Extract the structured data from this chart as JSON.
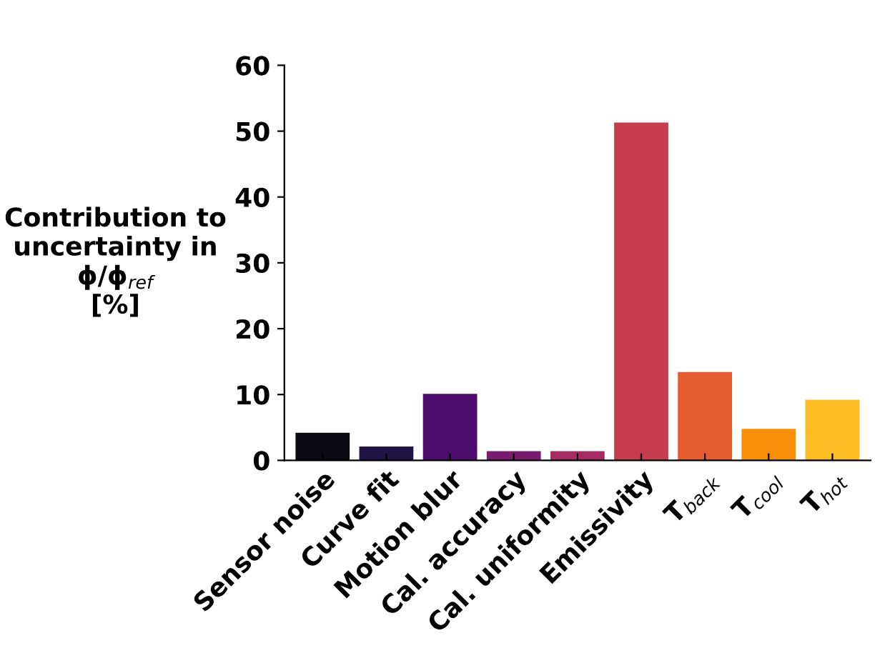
{
  "chart_data": {
    "type": "bar",
    "ylabel": "Contribution to\nuncertainty in\nϕ/ϕ$_{ref}$\n[%]",
    "categories": [
      "Sensor noise",
      "Curve fit",
      "Motion blur",
      "Cal. accuracy",
      "Cal. uniformity",
      "Emissivity",
      "T$_{back}$",
      "T$_{cool}$",
      "T$_{hot}$"
    ],
    "values": [
      4.2,
      2.1,
      10.1,
      1.4,
      1.4,
      51.3,
      13.4,
      4.8,
      9.2
    ],
    "colors": [
      "#0a0a10",
      "#1f1445",
      "#4b0c6b",
      "#781c6d",
      "#a52c60",
      "#c53d4f",
      "#e55c30",
      "#f98e09",
      "#fbbd24"
    ],
    "ylim": [
      0,
      60
    ],
    "yticks": [
      0,
      10,
      20,
      30,
      40,
      50,
      60
    ],
    "grid": false,
    "legend": false
  }
}
